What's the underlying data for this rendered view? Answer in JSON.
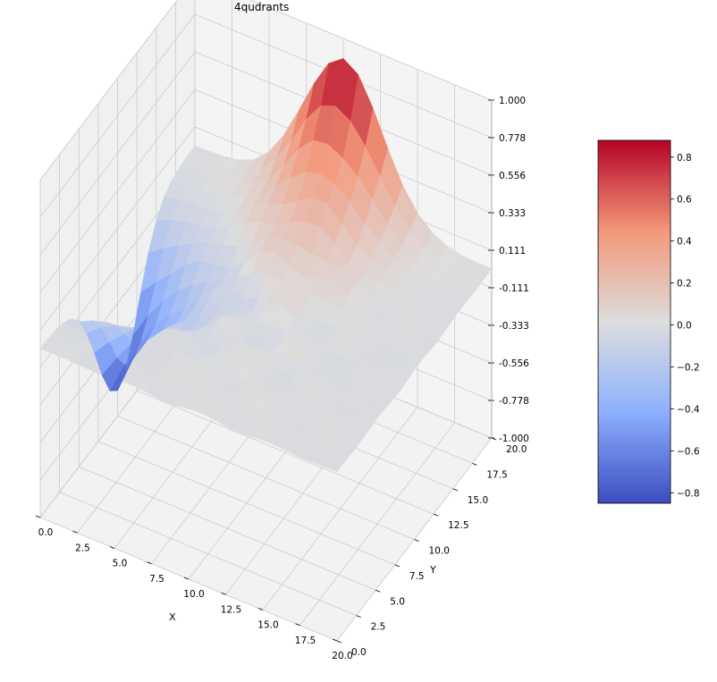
{
  "chart_data": {
    "type": "surface",
    "title": "4qudrants",
    "xlabel": "X",
    "ylabel": "Y",
    "zlabel": "",
    "grid": true,
    "colormap": "coolwarm",
    "x_range": [
      0,
      20
    ],
    "y_range": [
      0,
      20
    ],
    "z_range": [
      -1.0,
      1.0
    ],
    "x_ticks": [
      "0.0",
      "2.5",
      "5.0",
      "7.5",
      "10.0",
      "12.5",
      "15.0",
      "17.5",
      "20.0"
    ],
    "y_ticks": [
      "0.0",
      "2.5",
      "5.0",
      "7.5",
      "10.0",
      "12.5",
      "15.0",
      "17.5",
      "20.0"
    ],
    "z_ticks": [
      "-1.000",
      "-0.778",
      "-0.556",
      "-0.333",
      "-0.111",
      "0.111",
      "0.333",
      "0.556",
      "0.778",
      "1.000"
    ],
    "colorbar": {
      "range": [
        -0.85,
        0.88
      ],
      "ticks": [
        "0.8",
        "0.6",
        "0.4",
        "0.2",
        "0.0",
        "−0.2",
        "−0.4",
        "−0.6",
        "−0.8"
      ],
      "tick_values": [
        0.8,
        0.6,
        0.4,
        0.2,
        0.0,
        -0.2,
        -0.4,
        -0.6,
        -0.8
      ]
    },
    "surface_description": {
      "positive_peak": {
        "x": 10,
        "y": 20,
        "z": 0.88
      },
      "negative_peak": {
        "x": 0,
        "y": 10,
        "z": -0.85
      },
      "baseline": 0.0
    }
  }
}
